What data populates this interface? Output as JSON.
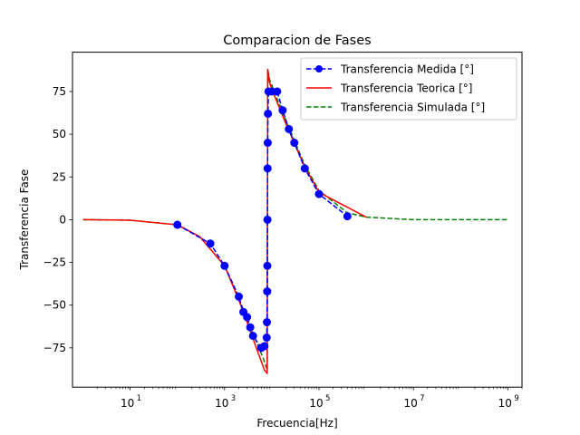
{
  "chart_data": {
    "type": "line",
    "title": "Comparacion de Fases",
    "xlabel": "Frecuencia[Hz]",
    "ylabel": "Transferencia Fase",
    "xscale": "log",
    "xlim": [
      0.6,
      2000000000
    ],
    "ylim": [
      -98,
      98
    ],
    "x_ticks": [
      {
        "value": 10,
        "base": "10",
        "exp": "1"
      },
      {
        "value": 1000,
        "base": "10",
        "exp": "3"
      },
      {
        "value": 100000,
        "base": "10",
        "exp": "5"
      },
      {
        "value": 10000000,
        "base": "10",
        "exp": "7"
      },
      {
        "value": 1000000000,
        "base": "10",
        "exp": "9"
      }
    ],
    "y_ticks": [
      {
        "value": 75,
        "label": "75"
      },
      {
        "value": 50,
        "label": "50"
      },
      {
        "value": 25,
        "label": "25"
      },
      {
        "value": 0,
        "label": "0"
      },
      {
        "value": -25,
        "label": "−25"
      },
      {
        "value": -50,
        "label": "−50"
      },
      {
        "value": -75,
        "label": "−75"
      }
    ],
    "grid": false,
    "legend_position": "top-right",
    "series": [
      {
        "name": "Transferencia Medida [°]",
        "color": "#0000ff",
        "style": "dashed-marker",
        "x": [
          100,
          500,
          1000,
          2000,
          2500,
          3000,
          3500,
          4000,
          6000,
          7000,
          7800,
          7900,
          8000,
          8050,
          8100,
          8150,
          8200,
          8300,
          8500,
          10000,
          13000,
          17000,
          23000,
          30000,
          50000,
          100000,
          400000
        ],
        "y": [
          -3,
          -14,
          -27,
          -45,
          -54,
          -57,
          -63,
          -68,
          -75,
          -74,
          -69,
          -60,
          -42,
          -27,
          0,
          30,
          45,
          62,
          75,
          75,
          75,
          64,
          53,
          45,
          30,
          15,
          2
        ]
      },
      {
        "name": "Transferencia Teorica [°]",
        "color": "#ff0000",
        "style": "solid",
        "x": [
          1,
          10,
          100,
          300,
          1000,
          2000,
          3000,
          5000,
          7000,
          8000,
          8100,
          8200,
          9000,
          12000,
          20000,
          50000,
          100000,
          1000000
        ],
        "y": [
          0,
          -0.3,
          -3,
          -10,
          -27,
          -47,
          -60,
          -77,
          -88,
          -90,
          0,
          88,
          80,
          71,
          56,
          31,
          16,
          1.5
        ]
      },
      {
        "name": "Transferencia Simulada [°]",
        "color": "#008000",
        "style": "dashed",
        "x": [
          1,
          10,
          100,
          300,
          1000,
          2000,
          3000,
          5000,
          7000,
          8000,
          8100,
          8200,
          9000,
          12000,
          20000,
          50000,
          100000,
          400000,
          1000000,
          10000000,
          100000000,
          1000000000
        ],
        "y": [
          0,
          -0.3,
          -3,
          -10,
          -27,
          -46,
          -58,
          -73,
          -83,
          -88,
          0,
          88,
          82,
          73,
          58,
          32,
          17,
          4,
          1.5,
          0,
          0,
          0
        ]
      }
    ]
  }
}
